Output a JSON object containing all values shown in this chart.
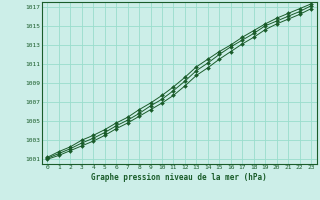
{
  "xlabel": "Graphe pression niveau de la mer (hPa)",
  "bg_color": "#cceee8",
  "grid_color": "#99ddcc",
  "line_color": "#1a5c2a",
  "marker_color": "#1a5c2a",
  "xlim": [
    -0.5,
    23.5
  ],
  "ylim": [
    1000.5,
    1017.5
  ],
  "yticks": [
    1001,
    1003,
    1005,
    1007,
    1009,
    1011,
    1013,
    1015,
    1017
  ],
  "xticks": [
    0,
    1,
    2,
    3,
    4,
    5,
    6,
    7,
    8,
    9,
    10,
    11,
    12,
    13,
    14,
    15,
    16,
    17,
    18,
    19,
    20,
    21,
    22,
    23
  ],
  "line1_x": [
    0,
    1,
    2,
    3,
    4,
    5,
    6,
    7,
    8,
    9,
    10,
    11,
    12,
    13,
    14,
    15,
    16,
    17,
    18,
    19,
    20,
    21,
    22,
    23
  ],
  "line1_y": [
    1001.0,
    1001.4,
    1001.9,
    1002.4,
    1002.9,
    1003.5,
    1004.2,
    1004.8,
    1005.5,
    1006.2,
    1006.9,
    1007.7,
    1008.7,
    1009.8,
    1010.6,
    1011.5,
    1012.3,
    1013.1,
    1013.8,
    1014.6,
    1015.2,
    1015.7,
    1016.2,
    1016.8
  ],
  "line2_x": [
    0,
    1,
    2,
    3,
    4,
    5,
    6,
    7,
    8,
    9,
    10,
    11,
    12,
    13,
    14,
    15,
    16,
    17,
    18,
    19,
    20,
    21,
    22,
    23
  ],
  "line2_y": [
    1001.1,
    1001.6,
    1002.1,
    1002.7,
    1003.2,
    1003.8,
    1004.5,
    1005.1,
    1005.8,
    1006.6,
    1007.3,
    1008.2,
    1009.2,
    1010.3,
    1011.1,
    1012.0,
    1012.8,
    1013.5,
    1014.2,
    1015.0,
    1015.5,
    1016.0,
    1016.5,
    1017.1
  ],
  "line3_x": [
    0,
    1,
    2,
    3,
    4,
    5,
    6,
    7,
    8,
    9,
    10,
    11,
    12,
    13,
    14,
    15,
    16,
    17,
    18,
    19,
    20,
    21,
    22,
    23
  ],
  "line3_y": [
    1001.2,
    1001.8,
    1002.3,
    1003.0,
    1003.5,
    1004.1,
    1004.8,
    1005.4,
    1006.2,
    1006.9,
    1007.7,
    1008.6,
    1009.6,
    1010.7,
    1011.5,
    1012.3,
    1013.0,
    1013.8,
    1014.5,
    1015.2,
    1015.8,
    1016.3,
    1016.8,
    1017.3
  ]
}
